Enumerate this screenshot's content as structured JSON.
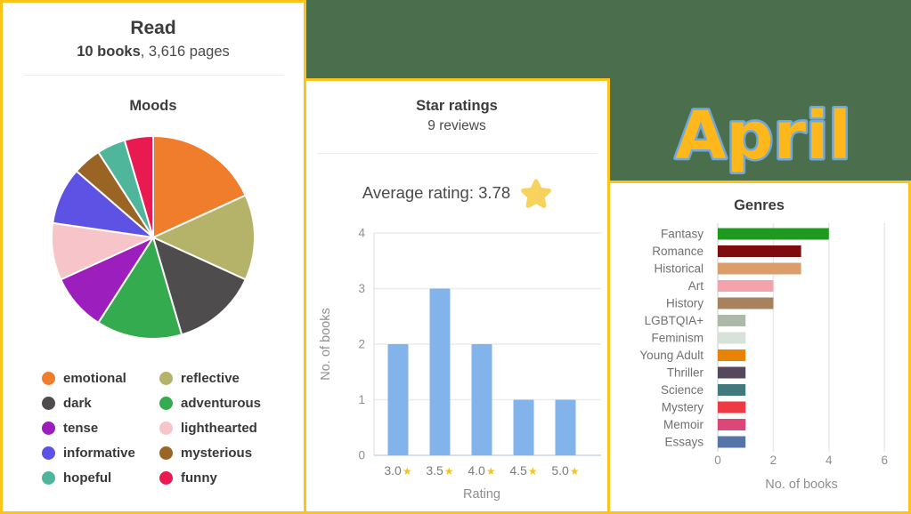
{
  "theme": {
    "background": "#4B6E4C",
    "card_border": "#FCC41B",
    "card_bg": "#FFFFFF",
    "heading": "#3C3C3C",
    "divider": "#ECECEC",
    "april_fill": "#FFB81C",
    "april_stroke": "#6FA8DC",
    "star": "#F5C518",
    "avg_star": "#F7D35E"
  },
  "month_label": "April",
  "read_card": {
    "title": "Read",
    "books": "10 books",
    "pages_rest": ", 3,616 pages"
  },
  "ratings_card": {
    "average_label": "Average rating: 3.78"
  },
  "chart_data": [
    {
      "type": "pie",
      "title": "Moods",
      "legend_position": "bottom",
      "series": [
        {
          "label": "emotional",
          "value": 4,
          "color": "#F07D2B"
        },
        {
          "label": "reflective",
          "value": 3,
          "color": "#B5B269"
        },
        {
          "label": "dark",
          "value": 3,
          "color": "#4F4C4D"
        },
        {
          "label": "adventurous",
          "value": 3,
          "color": "#35AB4F"
        },
        {
          "label": "tense",
          "value": 2,
          "color": "#9C1EBC"
        },
        {
          "label": "lighthearted",
          "value": 2,
          "color": "#F7C5C9"
        },
        {
          "label": "informative",
          "value": 2,
          "color": "#5D52E4"
        },
        {
          "label": "mysterious",
          "value": 1,
          "color": "#9A6524"
        },
        {
          "label": "hopeful",
          "value": 1,
          "color": "#4FB69B"
        },
        {
          "label": "funny",
          "value": 1,
          "color": "#E91A52"
        }
      ]
    },
    {
      "type": "bar",
      "title": "Star ratings",
      "subtitle": "9 reviews",
      "categories": [
        "3.0",
        "3.5",
        "4.0",
        "4.5",
        "5.0"
      ],
      "category_suffix": "★",
      "values": [
        2,
        3,
        2,
        1,
        1
      ],
      "bar_color": "#82B4EB",
      "xlabel": "Rating",
      "ylabel": "No. of books",
      "ylim": [
        0,
        4
      ],
      "yticks": [
        0,
        1,
        2,
        3,
        4
      ],
      "grid": true
    },
    {
      "type": "bar-horizontal",
      "title": "Genres",
      "categories": [
        "Fantasy",
        "Romance",
        "Historical",
        "Art",
        "History",
        "LGBTQIA+",
        "Feminism",
        "Young Adult",
        "Thriller",
        "Science",
        "Mystery",
        "Memoir",
        "Essays"
      ],
      "values": [
        4,
        3,
        3,
        2,
        2,
        1,
        1,
        1,
        1,
        1,
        1,
        1,
        1
      ],
      "colors": [
        "#1E9B1E",
        "#7E0C0C",
        "#DB9E6B",
        "#F2A3AB",
        "#A8815D",
        "#ACB8A8",
        "#D9E1DB",
        "#E88306",
        "#55485E",
        "#41797D",
        "#EF3A43",
        "#DC4778",
        "#5774A9"
      ],
      "xlabel": "No. of books",
      "xticks": [
        0,
        2,
        4,
        6
      ],
      "xlim": [
        0,
        6
      ],
      "grid": true
    }
  ]
}
